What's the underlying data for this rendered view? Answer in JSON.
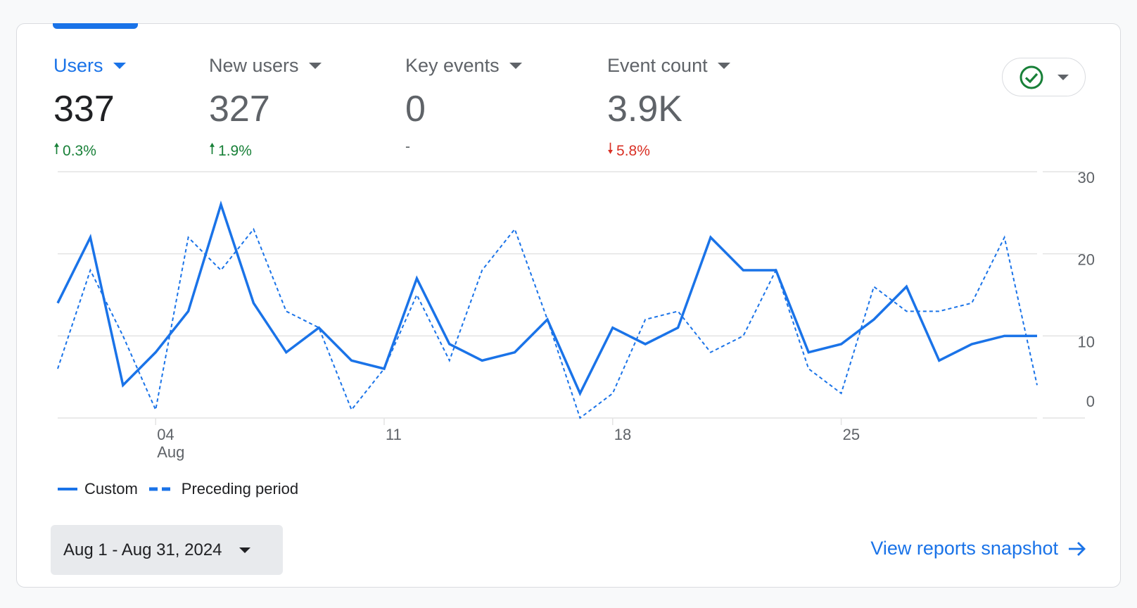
{
  "metrics": [
    {
      "label": "Users",
      "value": "337",
      "change": "0.3%",
      "direction": "up"
    },
    {
      "label": "New users",
      "value": "327",
      "change": "1.9%",
      "direction": "up"
    },
    {
      "label": "Key events",
      "value": "0",
      "change": "-",
      "direction": "none"
    },
    {
      "label": "Event count",
      "value": "3.9K",
      "change": "5.8%",
      "direction": "down"
    }
  ],
  "colors": {
    "accent": "#1a73e8",
    "up": "#188038",
    "down": "#d93025"
  },
  "chart_data": {
    "type": "line",
    "x": [
      1,
      2,
      3,
      4,
      5,
      6,
      7,
      8,
      9,
      10,
      11,
      12,
      13,
      14,
      15,
      16,
      17,
      18,
      19,
      20,
      21,
      22,
      23,
      24,
      25,
      26,
      27,
      28,
      29,
      30,
      31
    ],
    "series": [
      {
        "name": "Custom",
        "style": "solid",
        "values": [
          14,
          22,
          4,
          8,
          13,
          26,
          14,
          8,
          11,
          7,
          6,
          17,
          9,
          7,
          8,
          12,
          3,
          11,
          9,
          11,
          22,
          18,
          18,
          8,
          9,
          12,
          16,
          7,
          9,
          10,
          10
        ]
      },
      {
        "name": "Preceding period",
        "style": "dashed",
        "values": [
          6,
          18,
          10,
          1,
          22,
          18,
          23,
          13,
          11,
          1,
          6,
          15,
          7,
          18,
          23,
          12,
          0,
          3,
          12,
          13,
          8,
          10,
          18,
          6,
          3,
          16,
          13,
          13,
          14,
          22,
          4
        ]
      }
    ],
    "xticks": [
      {
        "day": 4,
        "label": "04",
        "sublabel": "Aug"
      },
      {
        "day": 11,
        "label": "11"
      },
      {
        "day": 18,
        "label": "18"
      },
      {
        "day": 25,
        "label": "25"
      }
    ],
    "yticks": [
      "0",
      "10",
      "20",
      "30"
    ],
    "ylim": [
      0,
      30
    ],
    "grid": true,
    "legend": "bottom-left"
  },
  "legend": {
    "custom": "Custom",
    "preceding": "Preceding period"
  },
  "date_range": "Aug 1 - Aug 31, 2024",
  "view_link": "View reports snapshot"
}
